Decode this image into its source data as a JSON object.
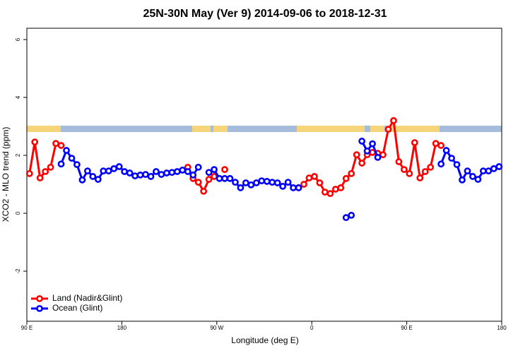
{
  "chart_data": {
    "type": "line",
    "title": "25N-30N May (Ver 9)   2014-09-06 to 2018-12-31",
    "x_label": "Longitude (deg E)",
    "y_label": "XCO2 - MLO trend (ppm)",
    "x": [
      92.5,
      97.5,
      102.5,
      107.5,
      112.5,
      117.5,
      122.5,
      127.5,
      132.5,
      137.5,
      142.5,
      147.5,
      152.5,
      157.5,
      162.5,
      167.5,
      172.5,
      177.5,
      182.5,
      187.5,
      192.5,
      197.5,
      202.5,
      207.5,
      212.5,
      217.5,
      222.5,
      227.5,
      232.5,
      237.5,
      242.5,
      247.5,
      252.5,
      257.5,
      262.5,
      267.5,
      272.5,
      277.5,
      282.5,
      287.5,
      292.5,
      297.5,
      302.5,
      307.5,
      312.5,
      317.5,
      322.5,
      327.5,
      332.5,
      337.5,
      342.5,
      347.5,
      352.5,
      357.5,
      362.5,
      367.5,
      372.5,
      377.5,
      382.5,
      387.5,
      392.5,
      397.5,
      402.5,
      407.5,
      412.5,
      417.5,
      422.5,
      427.5,
      432.5,
      437.5,
      442.5,
      447.5,
      452.5,
      457.5,
      462.5,
      467.5,
      472.5,
      477.5,
      482.5,
      487.5,
      492.5,
      497.5,
      502.5,
      507.5,
      512.5,
      517.5,
      522.5,
      527.5,
      532.5,
      537.5
    ],
    "series": [
      {
        "name": "Land (Nadir&Glint)",
        "color": "#ff0000",
        "values": [
          1.37,
          2.46,
          1.22,
          1.44,
          1.59,
          2.41,
          2.34,
          null,
          null,
          null,
          null,
          null,
          null,
          null,
          null,
          null,
          null,
          null,
          null,
          null,
          null,
          null,
          null,
          null,
          null,
          null,
          null,
          null,
          null,
          null,
          1.59,
          1.2,
          1.07,
          0.76,
          1.17,
          1.27,
          null,
          1.51,
          null,
          null,
          null,
          null,
          null,
          null,
          null,
          null,
          null,
          null,
          null,
          null,
          null,
          0.88,
          1.0,
          1.22,
          1.27,
          1.05,
          0.73,
          0.68,
          0.83,
          0.88,
          1.2,
          1.37,
          2.02,
          1.73,
          2.02,
          2.1,
          2.07,
          2.02,
          2.9,
          3.2,
          1.78,
          1.51,
          1.37,
          2.44,
          1.22,
          1.44,
          1.59,
          2.41,
          2.34,
          null,
          null,
          null,
          null,
          null,
          null,
          null,
          null,
          null,
          null,
          null
        ]
      },
      {
        "name": "Ocean (Glint)",
        "color": "#0000ff",
        "values": [
          null,
          null,
          null,
          null,
          null,
          null,
          1.7,
          2.17,
          1.9,
          1.68,
          1.15,
          1.46,
          1.27,
          1.17,
          1.46,
          1.46,
          1.54,
          1.61,
          1.44,
          1.39,
          1.29,
          1.32,
          1.34,
          1.27,
          1.44,
          1.34,
          1.39,
          1.41,
          1.44,
          1.49,
          1.44,
          1.32,
          1.59,
          null,
          1.41,
          1.51,
          1.2,
          1.2,
          1.2,
          1.07,
          0.88,
          1.05,
          0.98,
          1.05,
          1.12,
          1.1,
          1.07,
          1.05,
          0.93,
          1.07,
          0.88,
          0.88,
          null,
          null,
          null,
          null,
          null,
          null,
          null,
          null,
          -0.15,
          -0.07,
          null,
          2.49,
          2.15,
          2.4,
          1.93,
          null,
          null,
          null,
          null,
          null,
          null,
          null,
          null,
          null,
          null,
          null,
          1.7,
          2.17,
          1.9,
          1.68,
          1.15,
          1.46,
          1.27,
          1.17,
          1.46,
          1.46,
          1.54,
          1.61
        ]
      }
    ],
    "xlim": [
      90,
      540
    ],
    "xticks": [
      {
        "value": 90,
        "label": "90 E"
      },
      180,
      {
        "value": 270,
        "label": "90 W"
      },
      {
        "value": 360,
        "label": "0"
      },
      {
        "value": 450,
        "label": "90 E"
      },
      {
        "value": 540,
        "label": "180"
      }
    ],
    "ylim": [
      -3.73,
      6.39
    ],
    "yticks": [
      -2,
      0,
      2,
      4,
      6
    ],
    "legend": "bottom-left",
    "grid": false
  }
}
